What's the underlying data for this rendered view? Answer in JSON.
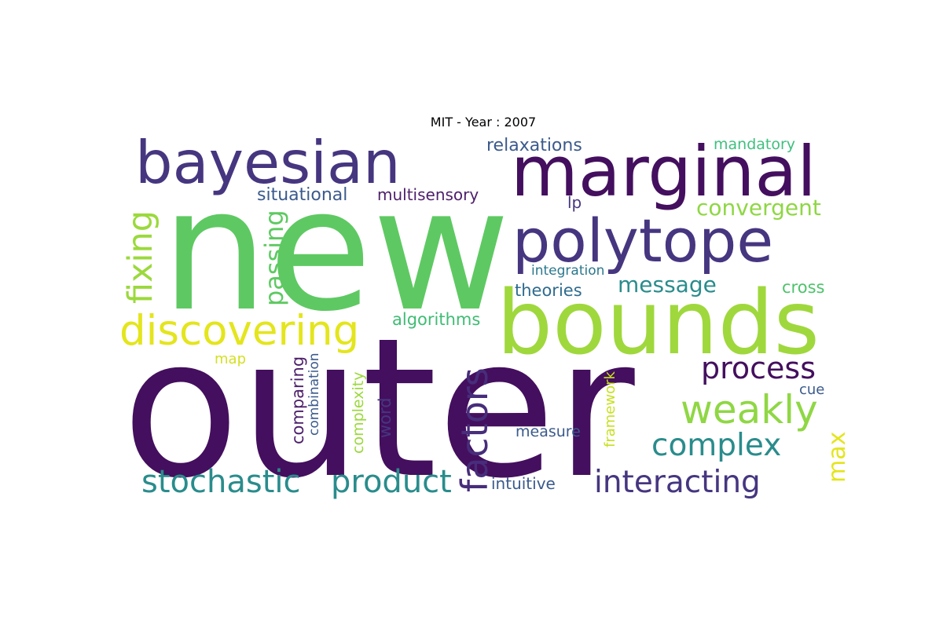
{
  "title": "MIT - Year : 2007",
  "words": [
    {
      "text": "new",
      "color": "#5ec962"
    },
    {
      "text": "outer",
      "color": "#440f5e"
    },
    {
      "text": "bounds",
      "color": "#9fd83d"
    },
    {
      "text": "marginal",
      "color": "#440f5e"
    },
    {
      "text": "polytope",
      "color": "#463680"
    },
    {
      "text": "bayesian",
      "color": "#463680"
    },
    {
      "text": "discovering",
      "color": "#e4e51c"
    },
    {
      "text": "factors",
      "color": "#472d7b"
    },
    {
      "text": "fixing",
      "color": "#9bd93c"
    },
    {
      "text": "passing",
      "color": "#5ec962"
    },
    {
      "text": "weakly",
      "color": "#8fd744"
    },
    {
      "text": "process",
      "color": "#440f5e"
    },
    {
      "text": "stochastic",
      "color": "#2a8c8c"
    },
    {
      "text": "product",
      "color": "#2a8c8c"
    },
    {
      "text": "interacting",
      "color": "#463680"
    },
    {
      "text": "complex",
      "color": "#2a8c8c"
    },
    {
      "text": "convergent",
      "color": "#8fd744"
    },
    {
      "text": "message",
      "color": "#2a8c8c"
    },
    {
      "text": "max",
      "color": "#e4e51c"
    },
    {
      "text": "relaxations",
      "color": "#3b5a8c"
    },
    {
      "text": "mandatory",
      "color": "#40bf7f"
    },
    {
      "text": "situational",
      "color": "#3b5a8c"
    },
    {
      "text": "multisensory",
      "color": "#4d1f6b"
    },
    {
      "text": "lp",
      "color": "#463680"
    },
    {
      "text": "integration",
      "color": "#2a788e"
    },
    {
      "text": "theories",
      "color": "#2f6b8e"
    },
    {
      "text": "cross",
      "color": "#4ec36b"
    },
    {
      "text": "algorithms",
      "color": "#3fbc73"
    },
    {
      "text": "map",
      "color": "#d4e022"
    },
    {
      "text": "comparing",
      "color": "#4d1f6b"
    },
    {
      "text": "combination",
      "color": "#3b5a8c"
    },
    {
      "text": "complexity",
      "color": "#9bd93c"
    },
    {
      "text": "word",
      "color": "#463680"
    },
    {
      "text": "framework",
      "color": "#c8e020"
    },
    {
      "text": "measure",
      "color": "#3b5a8c"
    },
    {
      "text": "cue",
      "color": "#3b5a8c"
    },
    {
      "text": "intuitive",
      "color": "#3b5a8c"
    }
  ]
}
